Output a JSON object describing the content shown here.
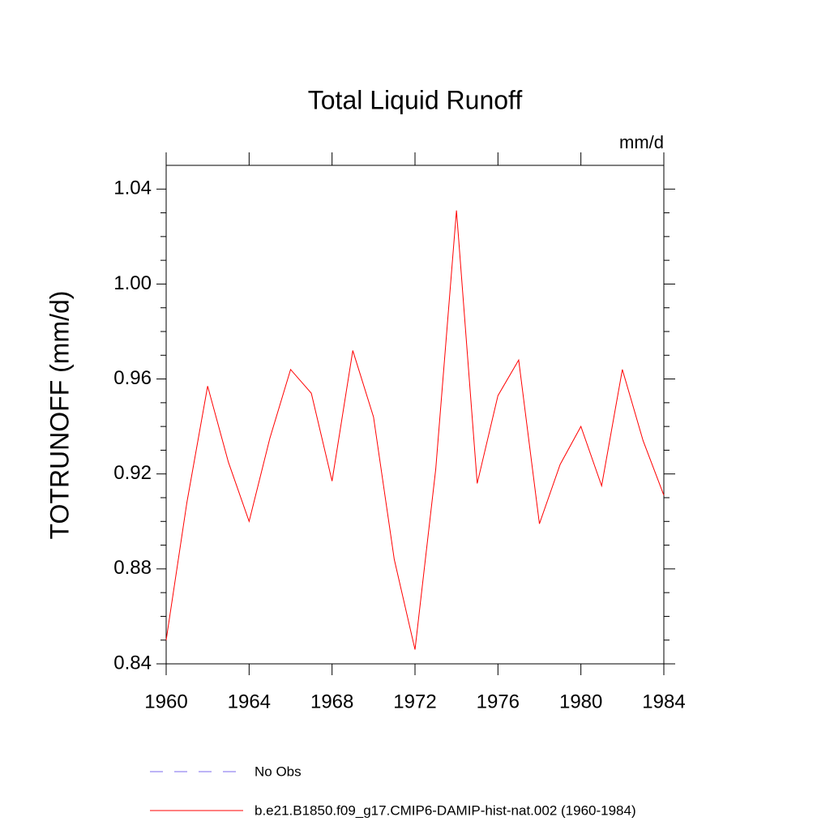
{
  "chart_data": {
    "type": "line",
    "title": "Total Liquid Runoff",
    "units": "mm/d",
    "y_label": "TOTRUNOFF  (mm/d)",
    "x": [
      1960,
      1961,
      1962,
      1963,
      1964,
      1965,
      1966,
      1967,
      1968,
      1969,
      1970,
      1971,
      1972,
      1973,
      1974,
      1975,
      1976,
      1977,
      1978,
      1979,
      1980,
      1981,
      1982,
      1983,
      1984
    ],
    "series": [
      {
        "name": "No Obs",
        "color": "#7b68ee",
        "dashed": true,
        "values": [
          null,
          null,
          null,
          null,
          null,
          null,
          null,
          null,
          null,
          null,
          null,
          null,
          null,
          null,
          null,
          null,
          null,
          null,
          null,
          null,
          null,
          null,
          null,
          null,
          null
        ]
      },
      {
        "name": "b.e21.B1850.f09_g17.CMIP6-DAMIP-hist-nat.002 (1960-1984)",
        "color": "#ff0000",
        "dashed": false,
        "values": [
          0.85,
          0.908,
          0.957,
          0.925,
          0.9,
          0.935,
          0.964,
          0.954,
          0.917,
          0.972,
          0.944,
          0.884,
          0.846,
          0.922,
          1.031,
          0.916,
          0.953,
          0.968,
          0.899,
          0.924,
          0.94,
          0.915,
          0.964,
          0.934,
          0.911
        ]
      }
    ],
    "xlim": [
      1960,
      1984
    ],
    "xticks": [
      1960,
      1964,
      1968,
      1972,
      1976,
      1980,
      1984
    ],
    "ylim": [
      0.84,
      1.05
    ],
    "yticks": [
      0.84,
      0.88,
      0.92,
      0.96,
      {
        "value": 1,
        "label": "1.00"
      },
      1.04
    ],
    "yminorticks": [
      0.85,
      0.86,
      0.87,
      0.89,
      0.9,
      0.91,
      0.93,
      0.94,
      0.95,
      0.97,
      0.98,
      0.99,
      1.01,
      1.02,
      1.03
    ]
  }
}
